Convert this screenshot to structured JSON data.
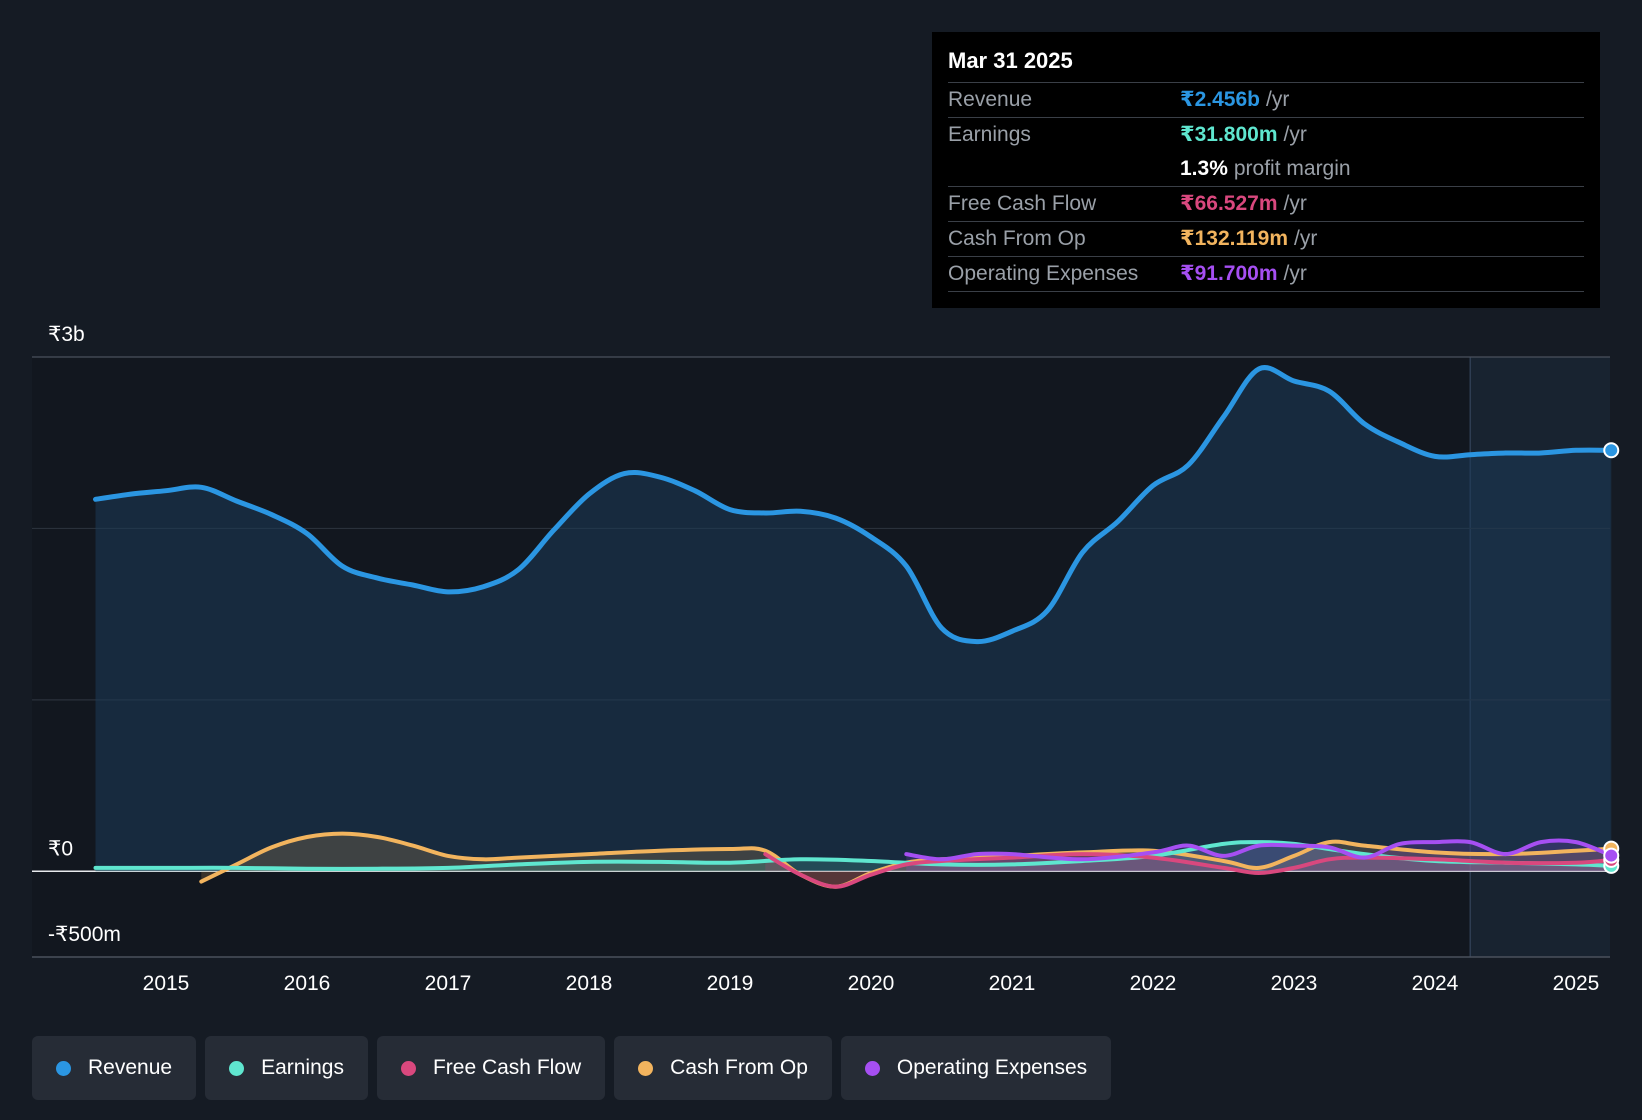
{
  "tooltip": {
    "date": "Mar 31 2025",
    "rows": [
      {
        "label": "Revenue",
        "value": "₹2.456b",
        "unit": "/yr",
        "color": "#2b96e2"
      },
      {
        "label": "Earnings",
        "value": "₹31.800m",
        "unit": "/yr",
        "color": "#5fe6cf"
      },
      {
        "margin_value": "1.3%",
        "margin_label": "profit margin"
      },
      {
        "label": "Free Cash Flow",
        "value": "₹66.527m",
        "unit": "/yr",
        "color": "#d9487e"
      },
      {
        "label": "Cash From Op",
        "value": "₹132.119m",
        "unit": "/yr",
        "color": "#f2b45e"
      },
      {
        "label": "Operating Expenses",
        "value": "₹91.700m",
        "unit": "/yr",
        "color": "#a64ff2"
      }
    ]
  },
  "legend": [
    {
      "label": "Revenue",
      "color": "#2b96e2"
    },
    {
      "label": "Earnings",
      "color": "#5fe6cf"
    },
    {
      "label": "Free Cash Flow",
      "color": "#d9487e"
    },
    {
      "label": "Cash From Op",
      "color": "#f2b45e"
    },
    {
      "label": "Operating Expenses",
      "color": "#a64ff2"
    }
  ],
  "chart_data": {
    "type": "area",
    "y_tick_labels": [
      "₹3b",
      "₹0",
      "-₹500m"
    ],
    "ylim": [
      -500,
      3000
    ],
    "y_unit": "₹m",
    "xlim": [
      2014.0,
      2025.25
    ],
    "x_ticks": [
      2015,
      2016,
      2017,
      2018,
      2019,
      2020,
      2021,
      2022,
      2023,
      2024,
      2025
    ],
    "grid": true,
    "highlight_start": 2024.25,
    "series": [
      {
        "name": "Revenue",
        "color": "#2b96e2",
        "fill": true,
        "x": [
          2014.5,
          2014.75,
          2015.0,
          2015.25,
          2015.5,
          2015.75,
          2016.0,
          2016.25,
          2016.5,
          2016.75,
          2017.0,
          2017.25,
          2017.5,
          2017.75,
          2018.0,
          2018.25,
          2018.5,
          2018.75,
          2019.0,
          2019.25,
          2019.5,
          2019.75,
          2020.0,
          2020.25,
          2020.5,
          2020.75,
          2021.0,
          2021.25,
          2021.5,
          2021.75,
          2022.0,
          2022.25,
          2022.5,
          2022.75,
          2023.0,
          2023.25,
          2023.5,
          2023.75,
          2024.0,
          2024.25,
          2024.5,
          2024.75,
          2025.0,
          2025.25
        ],
        "values": [
          2170,
          2200,
          2220,
          2240,
          2160,
          2080,
          1970,
          1780,
          1710,
          1670,
          1630,
          1660,
          1760,
          1990,
          2200,
          2320,
          2300,
          2220,
          2110,
          2090,
          2100,
          2060,
          1950,
          1780,
          1420,
          1340,
          1400,
          1520,
          1860,
          2040,
          2250,
          2370,
          2650,
          2930,
          2860,
          2800,
          2610,
          2500,
          2420,
          2430,
          2440,
          2440,
          2456,
          2456
        ]
      },
      {
        "name": "Earnings",
        "color": "#5fe6cf",
        "fill": false,
        "x": [
          2014.5,
          2015.0,
          2015.5,
          2016.0,
          2016.5,
          2017.0,
          2017.5,
          2018.0,
          2018.5,
          2019.0,
          2019.5,
          2020.0,
          2020.5,
          2021.0,
          2021.5,
          2022.0,
          2022.5,
          2022.75,
          2023.0,
          2023.5,
          2024.0,
          2024.5,
          2025.0,
          2025.25
        ],
        "values": [
          20,
          20,
          20,
          15,
          15,
          20,
          40,
          55,
          55,
          50,
          70,
          60,
          40,
          40,
          60,
          90,
          160,
          170,
          160,
          100,
          60,
          50,
          40,
          31.8
        ]
      },
      {
        "name": "Free Cash Flow",
        "color": "#d9487e",
        "fill": false,
        "x": [
          2019.25,
          2019.5,
          2019.75,
          2020.0,
          2020.25,
          2020.5,
          2021.0,
          2021.5,
          2022.0,
          2022.5,
          2022.75,
          2023.0,
          2023.25,
          2023.5,
          2024.0,
          2024.5,
          2025.0,
          2025.25
        ],
        "values": [
          100,
          -20,
          -90,
          -20,
          40,
          60,
          80,
          100,
          80,
          20,
          -10,
          20,
          70,
          80,
          70,
          50,
          50,
          66.5
        ]
      },
      {
        "name": "Cash From Op",
        "color": "#f2b45e",
        "fill": false,
        "x": [
          2015.25,
          2015.5,
          2015.75,
          2016.0,
          2016.25,
          2016.5,
          2016.75,
          2017.0,
          2017.25,
          2017.5,
          2018.0,
          2018.5,
          2019.0,
          2019.25,
          2019.5,
          2019.75,
          2020.0,
          2020.25,
          2020.5,
          2021.0,
          2021.5,
          2022.0,
          2022.5,
          2022.75,
          2023.0,
          2023.25,
          2023.5,
          2024.0,
          2024.5,
          2025.0,
          2025.25
        ],
        "values": [
          -60,
          40,
          140,
          200,
          220,
          200,
          150,
          90,
          70,
          80,
          100,
          120,
          130,
          120,
          -20,
          -90,
          -10,
          50,
          70,
          90,
          110,
          120,
          60,
          20,
          90,
          170,
          150,
          110,
          100,
          120,
          132.1
        ]
      },
      {
        "name": "Operating Expenses",
        "color": "#a64ff2",
        "fill": false,
        "x": [
          2020.25,
          2020.5,
          2020.75,
          2021.0,
          2021.5,
          2022.0,
          2022.25,
          2022.5,
          2022.75,
          2023.0,
          2023.25,
          2023.5,
          2023.75,
          2024.0,
          2024.25,
          2024.5,
          2024.75,
          2025.0,
          2025.25
        ],
        "values": [
          100,
          70,
          100,
          100,
          70,
          110,
          150,
          90,
          150,
          150,
          140,
          80,
          160,
          170,
          170,
          100,
          170,
          170,
          91.7
        ]
      }
    ]
  }
}
